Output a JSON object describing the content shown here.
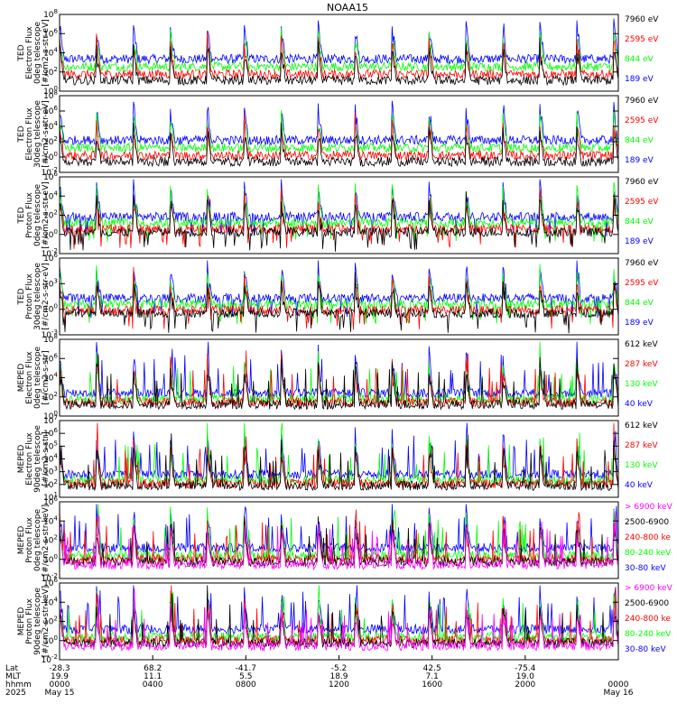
{
  "title": "NOAA15",
  "colors": {
    "blue": "#0000ff",
    "red": "#ff0000",
    "green": "#00ff00",
    "black": "#000000",
    "magenta": "#ff00ff"
  },
  "chart_data": [
    {
      "type": "line",
      "ylabel": [
        "TED",
        "Electron Flux",
        "0deg telescope",
        "[#/cm2-s-str-eV]"
      ],
      "ylim": [
        1,
        100000000.0
      ],
      "yscale": "log",
      "ticks": [
        {
          "v": 1,
          "t": "10^0"
        },
        {
          "v": 100.0,
          "t": "10^2"
        },
        {
          "v": 10000.0,
          "t": "10^4"
        },
        {
          "v": 1000000.0,
          "t": "10^6"
        },
        {
          "v": 100000000.0,
          "t": "10^8"
        }
      ],
      "series": [
        {
          "name": "7960 eV",
          "color": "#000000"
        },
        {
          "name": "2595 eV",
          "color": "#ff0000"
        },
        {
          "name": "844 eV",
          "color": "#00ff00"
        },
        {
          "name": "189 eV",
          "color": "#0000ff"
        }
      ]
    },
    {
      "type": "line",
      "ylabel": [
        "TED",
        "Electron Flux",
        "30deg telescope",
        "[#/cm2-s-str-eV]"
      ],
      "ylim": [
        0.01,
        100000000.0
      ],
      "yscale": "log",
      "ticks": [
        {
          "v": 0.01,
          "t": "10^-2"
        },
        {
          "v": 1,
          "t": "10^0"
        },
        {
          "v": 100.0,
          "t": "10^2"
        },
        {
          "v": 10000.0,
          "t": "10^4"
        },
        {
          "v": 1000000.0,
          "t": "10^6"
        },
        {
          "v": 100000000.0,
          "t": "10^8"
        }
      ],
      "series": [
        {
          "name": "7960 eV",
          "color": "#000000"
        },
        {
          "name": "2595 eV",
          "color": "#ff0000"
        },
        {
          "name": "844 eV",
          "color": "#00ff00"
        },
        {
          "name": "189 eV",
          "color": "#0000ff"
        }
      ]
    },
    {
      "type": "line",
      "ylabel": [
        "TED",
        "Proton Flux",
        "0deg telescope",
        "[#/cm2-s-str-eV]"
      ],
      "ylim": [
        0.01,
        1000000.0
      ],
      "yscale": "log",
      "ticks": [
        {
          "v": 0.01,
          "t": "10^-2"
        },
        {
          "v": 1,
          "t": "10^0"
        },
        {
          "v": 100.0,
          "t": "10^2"
        },
        {
          "v": 10000.0,
          "t": "10^4"
        },
        {
          "v": 1000000.0,
          "t": "10^6"
        }
      ],
      "series": [
        {
          "name": "7960 eV",
          "color": "#000000"
        },
        {
          "name": "2595 eV",
          "color": "#ff0000"
        },
        {
          "name": "844 eV",
          "color": "#00ff00"
        },
        {
          "name": "189 eV",
          "color": "#0000ff"
        }
      ]
    },
    {
      "type": "line",
      "ylabel": [
        "TED",
        "Proton Flux",
        "30deg telescope",
        "[#/cm2-s-str-eV]"
      ],
      "ylim": [
        0.001,
        1000000.0
      ],
      "yscale": "log",
      "ticks": [
        {
          "v": 0.001,
          "t": "10^-3"
        },
        {
          "v": 1,
          "t": "10^0"
        },
        {
          "v": 1000.0,
          "t": "10^3"
        },
        {
          "v": 1000000.0,
          "t": "10^6"
        }
      ],
      "series": [
        {
          "name": "7960 eV",
          "color": "#000000"
        },
        {
          "name": "2595 eV",
          "color": "#ff0000"
        },
        {
          "name": "844 eV",
          "color": "#00ff00"
        },
        {
          "name": "189 eV",
          "color": "#0000ff"
        }
      ]
    },
    {
      "type": "line",
      "ylabel": [
        "MEPED",
        "Electron Flux",
        "0deg telescope",
        "[#/cm2-s-str]"
      ],
      "ylim": [
        1,
        100000000.0
      ],
      "yscale": "log",
      "ticks": [
        {
          "v": 1,
          "t": "10^0"
        },
        {
          "v": 100.0,
          "t": "10^2"
        },
        {
          "v": 10000.0,
          "t": "10^4"
        },
        {
          "v": 1000000.0,
          "t": "10^6"
        },
        {
          "v": 100000000.0,
          "t": "10^8"
        }
      ],
      "series": [
        {
          "name": "612 keV",
          "color": "#000000"
        },
        {
          "name": "287 keV",
          "color": "#ff0000"
        },
        {
          "name": "130 keV",
          "color": "#00ff00"
        },
        {
          "name": "40 keV",
          "color": "#0000ff"
        }
      ]
    },
    {
      "type": "line",
      "ylabel": [
        "MEPED",
        "Electron Flux",
        "90deg telescope",
        "[#/cm2-s-str]"
      ],
      "ylim": [
        10,
        10000000.0
      ],
      "yscale": "log",
      "ticks": [
        {
          "v": 10,
          "t": "10^1"
        },
        {
          "v": 100,
          "t": "10^2"
        },
        {
          "v": 1000.0,
          "t": "10^3"
        },
        {
          "v": 10000.0,
          "t": "10^4"
        },
        {
          "v": 100000.0,
          "t": "10^5"
        },
        {
          "v": 1000000.0,
          "t": "10^6"
        },
        {
          "v": 10000000.0,
          "t": "10^7"
        }
      ],
      "series": [
        {
          "name": "612 keV",
          "color": "#000000"
        },
        {
          "name": "287 keV",
          "color": "#ff0000"
        },
        {
          "name": "130 keV",
          "color": "#00ff00"
        },
        {
          "name": "40 keV",
          "color": "#0000ff"
        }
      ]
    },
    {
      "type": "line",
      "ylabel": [
        "MEPED",
        "Proton Flux",
        "0deg telescope",
        "[#/cm2-s-str-keV]"
      ],
      "ylim": [
        0.01,
        1000000.0
      ],
      "yscale": "log",
      "ticks": [
        {
          "v": 0.01,
          "t": "10^-2"
        },
        {
          "v": 1,
          "t": "10^0"
        },
        {
          "v": 100.0,
          "t": "10^2"
        },
        {
          "v": 10000.0,
          "t": "10^4"
        },
        {
          "v": 1000000.0,
          "t": "10^6"
        }
      ],
      "series": [
        {
          "name": "> 6900 keV",
          "color": "#ff00ff"
        },
        {
          "name": "2500-6900",
          "color": "#000000"
        },
        {
          "name": "240-800 ke",
          "color": "#ff0000"
        },
        {
          "name": "80-240 keV",
          "color": "#00ff00"
        },
        {
          "name": "30-80 keV",
          "color": "#0000ff"
        }
      ]
    },
    {
      "type": "line",
      "ylabel": [
        "MEPED",
        "Proton Flux",
        "90deg telescope",
        "[#/cm2-s-str-keV]"
      ],
      "ylim": [
        0.01,
        1000000.0
      ],
      "yscale": "log",
      "ticks": [
        {
          "v": 0.01,
          "t": "10^-2"
        },
        {
          "v": 1,
          "t": "10^0"
        },
        {
          "v": 100.0,
          "t": "10^2"
        },
        {
          "v": 10000.0,
          "t": "10^4"
        },
        {
          "v": 1000000.0,
          "t": "10^6"
        }
      ],
      "series": [
        {
          "name": "> 6900 keV",
          "color": "#ff00ff"
        },
        {
          "name": "2500-6900",
          "color": "#000000"
        },
        {
          "name": "240-800 ke",
          "color": "#ff0000"
        },
        {
          "name": "80-240 keV",
          "color": "#00ff00"
        },
        {
          "name": "30-80 keV",
          "color": "#0000ff"
        }
      ]
    }
  ],
  "xaxis": {
    "row_labels": [
      "Lat",
      "MLT",
      "hhmm",
      "2025"
    ],
    "ticks": [
      {
        "hour": 0,
        "lat": "-28.3",
        "mlt": "19.9",
        "hhmm": "0000",
        "date": "May 15"
      },
      {
        "hour": 4,
        "lat": "68.2",
        "mlt": "11.1",
        "hhmm": "0400",
        "date": ""
      },
      {
        "hour": 8,
        "lat": "-41.7",
        "mlt": "5.5",
        "hhmm": "0800",
        "date": ""
      },
      {
        "hour": 12,
        "lat": "-5.2",
        "mlt": "18.9",
        "hhmm": "1200",
        "date": ""
      },
      {
        "hour": 16,
        "lat": "42.5",
        "mlt": "7.1",
        "hhmm": "1600",
        "date": ""
      },
      {
        "hour": 20,
        "lat": "-75.4",
        "mlt": "19.0",
        "hhmm": "2000",
        "date": ""
      },
      {
        "hour": 24,
        "lat": "",
        "mlt": "",
        "hhmm": "0000",
        "date": "May 16"
      }
    ],
    "xlim_hours": [
      0,
      24
    ]
  }
}
